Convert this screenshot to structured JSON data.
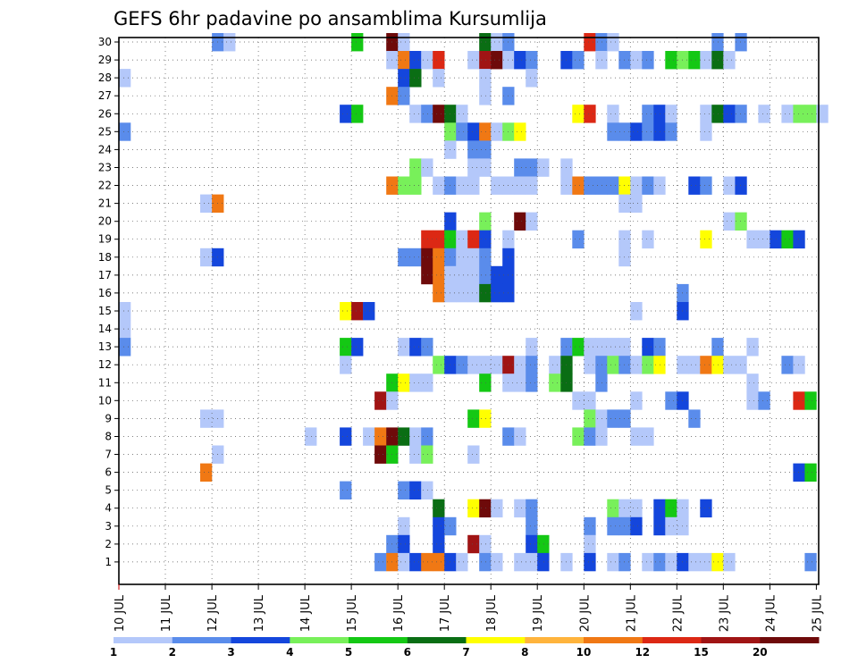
{
  "chart_data": {
    "type": "heatmap",
    "title": "GEFS 6hr padavine po ansamblima Kursumlija",
    "y_categories": [
      "1",
      "2",
      "3",
      "4",
      "5",
      "6",
      "7",
      "8",
      "9",
      "10",
      "11",
      "12",
      "13",
      "14",
      "15",
      "16",
      "17",
      "18",
      "19",
      "20",
      "21",
      "22",
      "23",
      "24",
      "25",
      "26",
      "27",
      "28",
      "29",
      "30"
    ],
    "x_tick_labels": [
      "10 JUL",
      "11 JUL",
      "12 JUL",
      "13 JUL",
      "14 JUL",
      "15 JUL",
      "16 JUL",
      "17 JUL",
      "18 JUL",
      "19 JUL",
      "20 JUL",
      "21 JUL",
      "22 JUL",
      "23 JUL",
      "24 JUL",
      "25 JUL"
    ],
    "x_range_days": [
      10,
      25
    ],
    "grid": true,
    "legend": {
      "placement": "bottom",
      "labels": [
        "1",
        "2",
        "3",
        "4",
        "5",
        "6",
        "7",
        "8",
        "10",
        "12",
        "15",
        "20"
      ],
      "colors": [
        "#b4c8fa",
        "#5a8ceb",
        "#1446dc",
        "#78f05a",
        "#14c814",
        "#0a6e14",
        "#ffff00",
        "#ffb43c",
        "#f07814",
        "#dc2814",
        "#a01414",
        "#6e0a0a"
      ]
    },
    "cells_note": "each cell = [day_of_july, member, level_index]",
    "cells": [
      [
        12.0,
        30,
        2
      ],
      [
        12.25,
        30,
        1
      ],
      [
        15.0,
        30,
        5
      ],
      [
        15.75,
        30,
        12
      ],
      [
        16.0,
        30,
        1
      ],
      [
        17.75,
        30,
        6
      ],
      [
        18.0,
        30,
        1
      ],
      [
        18.25,
        30,
        2
      ],
      [
        20.0,
        30,
        10
      ],
      [
        20.25,
        30,
        2
      ],
      [
        20.5,
        30,
        1
      ],
      [
        22.75,
        30,
        2
      ],
      [
        23.25,
        30,
        2
      ],
      [
        15.75,
        29,
        1
      ],
      [
        16.0,
        29,
        9
      ],
      [
        16.25,
        29,
        3
      ],
      [
        16.5,
        29,
        1
      ],
      [
        16.75,
        29,
        10
      ],
      [
        17.5,
        29,
        1
      ],
      [
        17.75,
        29,
        11
      ],
      [
        18.0,
        29,
        12
      ],
      [
        18.25,
        29,
        1
      ],
      [
        18.5,
        29,
        3
      ],
      [
        18.75,
        29,
        2
      ],
      [
        19.5,
        29,
        3
      ],
      [
        19.75,
        29,
        2
      ],
      [
        20.25,
        29,
        1
      ],
      [
        20.75,
        29,
        2
      ],
      [
        21.0,
        29,
        1
      ],
      [
        21.25,
        29,
        2
      ],
      [
        21.75,
        29,
        5
      ],
      [
        22.0,
        29,
        4
      ],
      [
        22.25,
        29,
        5
      ],
      [
        22.5,
        29,
        1
      ],
      [
        22.75,
        29,
        6
      ],
      [
        23.0,
        29,
        1
      ],
      [
        10.0,
        28,
        1
      ],
      [
        16.0,
        28,
        3
      ],
      [
        16.25,
        28,
        6
      ],
      [
        16.75,
        28,
        1
      ],
      [
        17.75,
        28,
        1
      ],
      [
        18.75,
        28,
        1
      ],
      [
        15.75,
        27,
        9
      ],
      [
        16.0,
        27,
        2
      ],
      [
        17.75,
        27,
        1
      ],
      [
        18.25,
        27,
        2
      ],
      [
        14.75,
        26,
        3
      ],
      [
        15.0,
        26,
        5
      ],
      [
        16.25,
        26,
        1
      ],
      [
        16.5,
        26,
        2
      ],
      [
        16.75,
        26,
        12
      ],
      [
        17.0,
        26,
        6
      ],
      [
        17.25,
        26,
        1
      ],
      [
        19.75,
        26,
        7
      ],
      [
        20.0,
        26,
        10
      ],
      [
        20.5,
        26,
        1
      ],
      [
        21.25,
        26,
        2
      ],
      [
        21.5,
        26,
        3
      ],
      [
        21.75,
        26,
        1
      ],
      [
        22.5,
        26,
        1
      ],
      [
        22.75,
        26,
        6
      ],
      [
        23.0,
        26,
        3
      ],
      [
        23.25,
        26,
        2
      ],
      [
        23.75,
        26,
        1
      ],
      [
        24.25,
        26,
        1
      ],
      [
        24.5,
        26,
        4
      ],
      [
        24.75,
        26,
        4
      ],
      [
        25.0,
        26,
        1
      ],
      [
        10.0,
        25,
        2
      ],
      [
        17.0,
        25,
        4
      ],
      [
        17.25,
        25,
        2
      ],
      [
        17.5,
        25,
        3
      ],
      [
        17.75,
        25,
        9
      ],
      [
        18.0,
        25,
        1
      ],
      [
        18.25,
        25,
        4
      ],
      [
        18.5,
        25,
        7
      ],
      [
        20.5,
        25,
        2
      ],
      [
        20.75,
        25,
        2
      ],
      [
        21.0,
        25,
        3
      ],
      [
        21.25,
        25,
        2
      ],
      [
        21.5,
        25,
        3
      ],
      [
        21.75,
        25,
        2
      ],
      [
        22.5,
        25,
        1
      ],
      [
        17.0,
        24,
        1
      ],
      [
        17.5,
        24,
        2
      ],
      [
        17.75,
        24,
        2
      ],
      [
        16.25,
        23,
        4
      ],
      [
        16.5,
        23,
        1
      ],
      [
        17.5,
        23,
        1
      ],
      [
        17.75,
        23,
        1
      ],
      [
        18.5,
        23,
        2
      ],
      [
        18.75,
        23,
        2
      ],
      [
        19.0,
        23,
        1
      ],
      [
        19.5,
        23,
        1
      ],
      [
        15.75,
        22,
        9
      ],
      [
        16.0,
        22,
        4
      ],
      [
        16.25,
        22,
        4
      ],
      [
        16.75,
        22,
        1
      ],
      [
        17.0,
        22,
        2
      ],
      [
        17.25,
        22,
        1
      ],
      [
        17.5,
        22,
        1
      ],
      [
        18.0,
        22,
        1
      ],
      [
        18.25,
        22,
        1
      ],
      [
        18.5,
        22,
        1
      ],
      [
        18.75,
        22,
        1
      ],
      [
        19.5,
        22,
        1
      ],
      [
        19.75,
        22,
        9
      ],
      [
        20.0,
        22,
        2
      ],
      [
        20.25,
        22,
        2
      ],
      [
        20.5,
        22,
        2
      ],
      [
        20.75,
        22,
        7
      ],
      [
        21.0,
        22,
        1
      ],
      [
        21.25,
        22,
        2
      ],
      [
        21.5,
        22,
        1
      ],
      [
        22.25,
        22,
        3
      ],
      [
        22.5,
        22,
        2
      ],
      [
        23.0,
        22,
        1
      ],
      [
        23.25,
        22,
        3
      ],
      [
        11.75,
        21,
        1
      ],
      [
        12.0,
        21,
        9
      ],
      [
        20.75,
        21,
        1
      ],
      [
        21.0,
        21,
        1
      ],
      [
        17.0,
        20,
        3
      ],
      [
        17.75,
        20,
        4
      ],
      [
        18.5,
        20,
        12
      ],
      [
        18.75,
        20,
        1
      ],
      [
        23.0,
        20,
        1
      ],
      [
        23.25,
        20,
        4
      ],
      [
        16.5,
        19,
        10
      ],
      [
        16.75,
        19,
        10
      ],
      [
        17.0,
        19,
        5
      ],
      [
        17.25,
        19,
        1
      ],
      [
        17.5,
        19,
        10
      ],
      [
        17.75,
        19,
        3
      ],
      [
        18.25,
        19,
        1
      ],
      [
        19.75,
        19,
        2
      ],
      [
        20.75,
        19,
        1
      ],
      [
        21.25,
        19,
        1
      ],
      [
        22.5,
        19,
        7
      ],
      [
        23.5,
        19,
        1
      ],
      [
        23.75,
        19,
        1
      ],
      [
        24.0,
        19,
        3
      ],
      [
        24.25,
        19,
        5
      ],
      [
        24.5,
        19,
        3
      ],
      [
        11.75,
        18,
        1
      ],
      [
        12.0,
        18,
        3
      ],
      [
        16.0,
        18,
        2
      ],
      [
        16.25,
        18,
        2
      ],
      [
        16.5,
        18,
        12
      ],
      [
        16.75,
        18,
        9
      ],
      [
        17.0,
        18,
        2
      ],
      [
        17.25,
        18,
        1
      ],
      [
        17.5,
        18,
        1
      ],
      [
        17.75,
        18,
        2
      ],
      [
        18.25,
        18,
        3
      ],
      [
        20.75,
        18,
        1
      ],
      [
        16.5,
        17,
        12
      ],
      [
        16.75,
        17,
        9
      ],
      [
        17.0,
        17,
        1
      ],
      [
        17.25,
        17,
        1
      ],
      [
        17.5,
        17,
        1
      ],
      [
        17.75,
        17,
        2
      ],
      [
        18.0,
        17,
        3
      ],
      [
        18.25,
        17,
        3
      ],
      [
        16.75,
        16,
        9
      ],
      [
        17.0,
        16,
        1
      ],
      [
        17.25,
        16,
        1
      ],
      [
        17.5,
        16,
        1
      ],
      [
        17.75,
        16,
        6
      ],
      [
        18.0,
        16,
        3
      ],
      [
        18.25,
        16,
        3
      ],
      [
        22.0,
        16,
        2
      ],
      [
        10.0,
        15,
        1
      ],
      [
        14.75,
        15,
        7
      ],
      [
        15.0,
        15,
        11
      ],
      [
        15.25,
        15,
        3
      ],
      [
        21.0,
        15,
        1
      ],
      [
        22.0,
        15,
        3
      ],
      [
        10.0,
        14,
        1
      ],
      [
        10.0,
        13,
        2
      ],
      [
        14.75,
        13,
        5
      ],
      [
        15.0,
        13,
        3
      ],
      [
        16.0,
        13,
        1
      ],
      [
        16.25,
        13,
        3
      ],
      [
        16.5,
        13,
        2
      ],
      [
        18.75,
        13,
        1
      ],
      [
        19.5,
        13,
        2
      ],
      [
        19.75,
        13,
        5
      ],
      [
        20.0,
        13,
        1
      ],
      [
        20.25,
        13,
        1
      ],
      [
        20.5,
        13,
        1
      ],
      [
        20.75,
        13,
        1
      ],
      [
        21.25,
        13,
        3
      ],
      [
        21.5,
        13,
        2
      ],
      [
        22.75,
        13,
        2
      ],
      [
        23.5,
        13,
        1
      ],
      [
        14.75,
        12,
        1
      ],
      [
        16.75,
        12,
        4
      ],
      [
        17.0,
        12,
        3
      ],
      [
        17.25,
        12,
        2
      ],
      [
        17.5,
        12,
        1
      ],
      [
        17.75,
        12,
        1
      ],
      [
        18.0,
        12,
        1
      ],
      [
        18.25,
        12,
        11
      ],
      [
        18.5,
        12,
        1
      ],
      [
        18.75,
        12,
        2
      ],
      [
        19.25,
        12,
        1
      ],
      [
        19.5,
        12,
        6
      ],
      [
        20.0,
        12,
        1
      ],
      [
        20.25,
        12,
        2
      ],
      [
        20.5,
        12,
        4
      ],
      [
        20.75,
        12,
        2
      ],
      [
        21.0,
        12,
        1
      ],
      [
        21.25,
        12,
        4
      ],
      [
        21.5,
        12,
        7
      ],
      [
        22.0,
        12,
        1
      ],
      [
        22.25,
        12,
        1
      ],
      [
        22.5,
        12,
        9
      ],
      [
        22.75,
        12,
        7
      ],
      [
        23.0,
        12,
        1
      ],
      [
        23.25,
        12,
        1
      ],
      [
        24.25,
        12,
        2
      ],
      [
        24.5,
        12,
        1
      ],
      [
        15.75,
        11,
        5
      ],
      [
        16.0,
        11,
        7
      ],
      [
        16.25,
        11,
        1
      ],
      [
        16.5,
        11,
        1
      ],
      [
        17.75,
        11,
        5
      ],
      [
        18.25,
        11,
        1
      ],
      [
        18.5,
        11,
        1
      ],
      [
        18.75,
        11,
        2
      ],
      [
        19.25,
        11,
        4
      ],
      [
        19.5,
        11,
        6
      ],
      [
        20.25,
        11,
        2
      ],
      [
        23.5,
        11,
        1
      ],
      [
        15.5,
        10,
        11
      ],
      [
        15.75,
        10,
        1
      ],
      [
        19.75,
        10,
        1
      ],
      [
        20.0,
        10,
        1
      ],
      [
        21.0,
        10,
        1
      ],
      [
        21.75,
        10,
        2
      ],
      [
        22.0,
        10,
        3
      ],
      [
        23.5,
        10,
        1
      ],
      [
        23.75,
        10,
        2
      ],
      [
        24.5,
        10,
        10
      ],
      [
        24.75,
        10,
        5
      ],
      [
        11.75,
        9,
        1
      ],
      [
        12.0,
        9,
        1
      ],
      [
        17.5,
        9,
        5
      ],
      [
        17.75,
        9,
        7
      ],
      [
        20.0,
        9,
        4
      ],
      [
        20.25,
        9,
        1
      ],
      [
        20.5,
        9,
        2
      ],
      [
        20.75,
        9,
        2
      ],
      [
        22.25,
        9,
        2
      ],
      [
        14.0,
        8,
        1
      ],
      [
        14.75,
        8,
        3
      ],
      [
        15.25,
        8,
        1
      ],
      [
        15.5,
        8,
        9
      ],
      [
        15.75,
        8,
        12
      ],
      [
        16.0,
        8,
        6
      ],
      [
        16.25,
        8,
        1
      ],
      [
        16.5,
        8,
        2
      ],
      [
        18.25,
        8,
        2
      ],
      [
        18.5,
        8,
        1
      ],
      [
        19.75,
        8,
        4
      ],
      [
        20.0,
        8,
        2
      ],
      [
        20.25,
        8,
        1
      ],
      [
        21.0,
        8,
        1
      ],
      [
        21.25,
        8,
        1
      ],
      [
        12.0,
        7,
        1
      ],
      [
        15.5,
        7,
        12
      ],
      [
        15.75,
        7,
        5
      ],
      [
        16.25,
        7,
        1
      ],
      [
        16.5,
        7,
        4
      ],
      [
        17.5,
        7,
        1
      ],
      [
        11.75,
        6,
        9
      ],
      [
        24.5,
        6,
        3
      ],
      [
        24.75,
        6,
        5
      ],
      [
        14.75,
        5,
        2
      ],
      [
        16.0,
        5,
        2
      ],
      [
        16.25,
        5,
        3
      ],
      [
        16.5,
        5,
        1
      ],
      [
        16.75,
        4,
        6
      ],
      [
        17.5,
        4,
        7
      ],
      [
        17.75,
        4,
        12
      ],
      [
        18.0,
        4,
        1
      ],
      [
        18.5,
        4,
        1
      ],
      [
        18.75,
        4,
        2
      ],
      [
        20.5,
        4,
        4
      ],
      [
        20.75,
        4,
        1
      ],
      [
        21.0,
        4,
        1
      ],
      [
        21.5,
        4,
        3
      ],
      [
        21.75,
        4,
        5
      ],
      [
        22.0,
        4,
        1
      ],
      [
        22.5,
        4,
        3
      ],
      [
        16.0,
        3,
        1
      ],
      [
        16.75,
        3,
        3
      ],
      [
        17.0,
        3,
        2
      ],
      [
        18.75,
        3,
        2
      ],
      [
        20.0,
        3,
        2
      ],
      [
        20.5,
        3,
        2
      ],
      [
        20.75,
        3,
        2
      ],
      [
        21.0,
        3,
        3
      ],
      [
        21.5,
        3,
        3
      ],
      [
        21.75,
        3,
        1
      ],
      [
        22.0,
        3,
        1
      ],
      [
        15.75,
        2,
        2
      ],
      [
        16.0,
        2,
        3
      ],
      [
        16.75,
        2,
        3
      ],
      [
        17.5,
        2,
        11
      ],
      [
        17.75,
        2,
        1
      ],
      [
        18.75,
        2,
        3
      ],
      [
        19.0,
        2,
        5
      ],
      [
        20.0,
        2,
        1
      ],
      [
        15.5,
        1,
        2
      ],
      [
        15.75,
        1,
        9
      ],
      [
        16.0,
        1,
        1
      ],
      [
        16.25,
        1,
        3
      ],
      [
        16.5,
        1,
        9
      ],
      [
        16.75,
        1,
        9
      ],
      [
        17.0,
        1,
        3
      ],
      [
        17.25,
        1,
        1
      ],
      [
        17.75,
        1,
        2
      ],
      [
        18.0,
        1,
        1
      ],
      [
        18.5,
        1,
        1
      ],
      [
        18.75,
        1,
        1
      ],
      [
        19.0,
        1,
        3
      ],
      [
        19.5,
        1,
        1
      ],
      [
        20.0,
        1,
        3
      ],
      [
        20.5,
        1,
        1
      ],
      [
        20.75,
        1,
        2
      ],
      [
        21.25,
        1,
        1
      ],
      [
        21.5,
        1,
        2
      ],
      [
        21.75,
        1,
        1
      ],
      [
        22.0,
        1,
        3
      ],
      [
        22.25,
        1,
        1
      ],
      [
        22.5,
        1,
        1
      ],
      [
        22.75,
        1,
        7
      ],
      [
        23.0,
        1,
        1
      ],
      [
        24.75,
        1,
        2
      ]
    ]
  }
}
